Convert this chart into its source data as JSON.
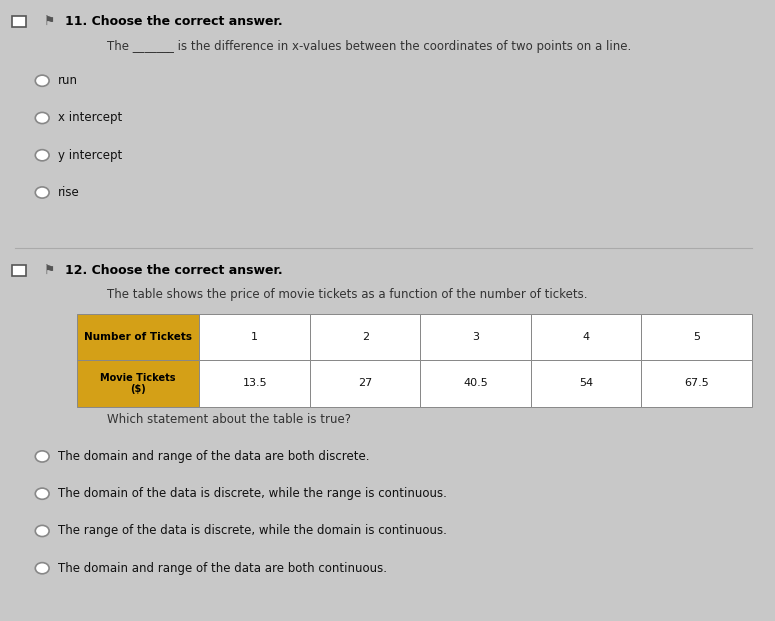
{
  "background_color": "#c8c8c8",
  "q11_header": "11. Choose the correct answer.",
  "q11_prompt": "The _______ is the difference in x-values between the coordinates of two points on a line.",
  "q11_options": [
    "run",
    "x intercept",
    "y intercept",
    "rise"
  ],
  "q12_header": "12. Choose the correct answer.",
  "q12_prompt": "The table shows the price of movie tickets as a function of the number of tickets.",
  "table_header_row1": "Number of Tickets",
  "table_header_row2": "Movie Tickets\n($)",
  "table_col_header_color": "#d4a017",
  "table_col_header_text_color": "#000000",
  "table_data_color": "#ffffff",
  "table_border_color": "#888888",
  "table_numbers": [
    1,
    2,
    3,
    4,
    5
  ],
  "table_prices": [
    13.5,
    27,
    40.5,
    54,
    67.5
  ],
  "q12_sub_prompt": "Which statement about the table is true?",
  "q12_options": [
    "The domain and range of the data are both discrete.",
    "The domain of the data is discrete, while the range is continuous.",
    "The range of the data is discrete, while the domain is continuous.",
    "The domain and range of the data are both continuous."
  ],
  "icon_color": "#555555",
  "header_bold_color": "#000000",
  "separator_color": "#aaaaaa",
  "text_color": "#111111",
  "prompt_color": "#333333"
}
